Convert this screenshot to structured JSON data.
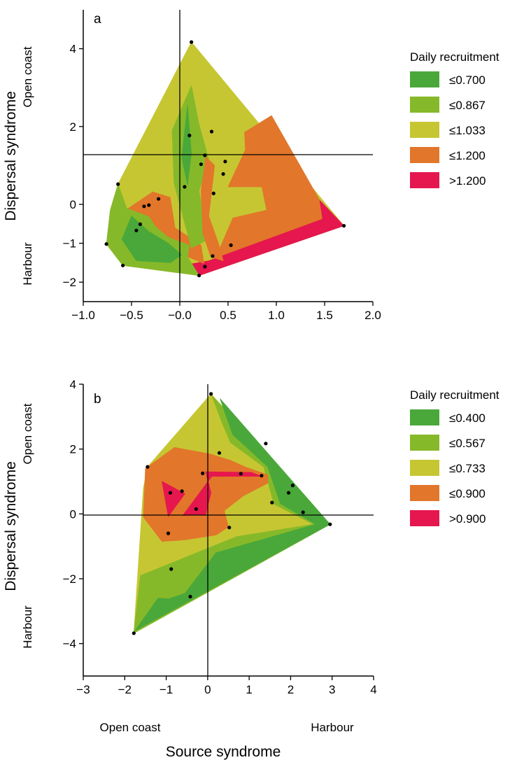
{
  "colors": {
    "class1": "#4aa83a",
    "class2": "#86b929",
    "class3": "#c6c633",
    "class4": "#e2762a",
    "class5": "#e5174e",
    "points": "#000000"
  },
  "shared": {
    "ylabel": "Dispersal syndrome",
    "xlabel": "Source syndrome",
    "y_top_label": "Open coast",
    "y_bottom_label": "Harbour",
    "x_left_label": "Open coast",
    "x_right_label": "Harbour",
    "legend_title": "Daily recruitment"
  },
  "chart_data": [
    {
      "type": "contour",
      "panel": "a",
      "xlim": [
        -1.0,
        2.0
      ],
      "ylim": [
        -2.5,
        5.0
      ],
      "xticks": [
        -1.0,
        -0.5,
        0.0,
        0.5,
        1.0,
        1.5,
        2.0
      ],
      "xtick_labels": [
        "-1.0",
        "-0.5",
        "-0.0",
        "0.5",
        "1.0",
        "1.5",
        "2.0"
      ],
      "yticks": [
        -2,
        -1,
        0,
        2,
        4
      ],
      "ytick_labels": [
        "-2",
        "-1",
        "0",
        "2",
        "4"
      ],
      "legend": [
        "≤0.700",
        "≤0.867",
        "≤1.033",
        "≤1.200",
        ">1.200"
      ],
      "points": [
        [
          0.12,
          4.17
        ],
        [
          -0.64,
          0.52
        ],
        [
          -0.22,
          0.14
        ],
        [
          -0.32,
          -0.02
        ],
        [
          -0.37,
          -0.05
        ],
        [
          -0.41,
          -0.51
        ],
        [
          -0.45,
          -0.67
        ],
        [
          -0.76,
          -1.02
        ],
        [
          -0.59,
          -1.57
        ],
        [
          0.05,
          0.45
        ],
        [
          0.1,
          1.77
        ],
        [
          0.33,
          1.87
        ],
        [
          0.26,
          1.26
        ],
        [
          0.22,
          1.03
        ],
        [
          0.47,
          1.1
        ],
        [
          0.45,
          0.78
        ],
        [
          0.35,
          0.28
        ],
        [
          0.34,
          -1.33
        ],
        [
          0.53,
          -1.05
        ],
        [
          0.26,
          -1.6
        ],
        [
          0.2,
          -1.83
        ],
        [
          1.7,
          -0.55
        ]
      ],
      "regions": [
        {
          "level": 3,
          "poly": [
            [
              0.12,
              4.17
            ],
            [
              1.7,
              -0.55
            ],
            [
              0.2,
              -1.83
            ],
            [
              -0.59,
              -1.57
            ],
            [
              -0.76,
              -1.02
            ],
            [
              -0.64,
              0.52
            ]
          ]
        },
        {
          "level": 4,
          "poly": [
            [
              0.67,
              1.85
            ],
            [
              0.95,
              2.28
            ],
            [
              1.45,
              0.1
            ],
            [
              1.7,
              -0.55
            ],
            [
              0.35,
              -1.5
            ],
            [
              0.55,
              -0.35
            ],
            [
              0.9,
              -0.15
            ],
            [
              0.85,
              0.45
            ],
            [
              0.5,
              0.45
            ],
            [
              0.68,
              1.4
            ]
          ]
        },
        {
          "level": 5,
          "poly": [
            [
              1.45,
              0.1
            ],
            [
              1.7,
              -0.55
            ],
            [
              0.2,
              -1.83
            ],
            [
              -0.26,
              -1.6
            ],
            [
              0.08,
              -1.55
            ],
            [
              0.3,
              -1.45
            ],
            [
              1.48,
              -0.38
            ]
          ]
        },
        {
          "level": 4,
          "poly": [
            [
              -0.28,
              0.32
            ],
            [
              -0.1,
              0.18
            ],
            [
              -0.05,
              -0.6
            ],
            [
              0.22,
              -1.05
            ],
            [
              0.25,
              -1.52
            ],
            [
              -0.08,
              -1.18
            ],
            [
              -0.48,
              -0.62
            ],
            [
              -0.56,
              -0.15
            ]
          ]
        },
        {
          "level": 2,
          "poly": [
            [
              -0.64,
              0.52
            ],
            [
              -0.72,
              -0.15
            ],
            [
              -0.76,
              -1.02
            ],
            [
              -0.59,
              -1.57
            ],
            [
              0.2,
              -1.83
            ],
            [
              0.08,
              -1.35
            ],
            [
              0.1,
              -1.05
            ],
            [
              -0.12,
              -0.85
            ],
            [
              -0.25,
              -0.58
            ],
            [
              -0.32,
              -0.32
            ],
            [
              -0.55,
              -0.1
            ]
          ]
        },
        {
          "level": 1,
          "poly": [
            [
              -0.5,
              -0.3
            ],
            [
              -0.6,
              -0.9
            ],
            [
              -0.45,
              -1.45
            ],
            [
              -0.1,
              -1.5
            ],
            [
              0.02,
              -1.3
            ],
            [
              -0.12,
              -1.0
            ],
            [
              -0.32,
              -0.7
            ]
          ]
        },
        {
          "level": 2,
          "poly": [
            [
              -0.08,
              1.9
            ],
            [
              0.12,
              3.05
            ],
            [
              0.2,
              2.05
            ],
            [
              0.3,
              1.15
            ],
            [
              0.2,
              0.35
            ],
            [
              0.28,
              -0.92
            ],
            [
              0.12,
              -1.12
            ],
            [
              0.02,
              -0.2
            ],
            [
              -0.06,
              0.55
            ]
          ]
        },
        {
          "level": 1,
          "poly": [
            [
              0.08,
              2.55
            ],
            [
              0.12,
              1.3
            ],
            [
              0.08,
              0.5
            ],
            [
              0.02,
              1.2
            ]
          ]
        },
        {
          "level": 4,
          "poly": [
            [
              0.27,
              1.22
            ],
            [
              0.36,
              1.0
            ],
            [
              0.3,
              -0.3
            ],
            [
              0.4,
              -1.0
            ],
            [
              0.45,
              -1.45
            ],
            [
              0.32,
              -1.35
            ],
            [
              0.24,
              -0.75
            ],
            [
              0.22,
              0.35
            ]
          ]
        }
      ]
    },
    {
      "type": "contour",
      "panel": "b",
      "xlim": [
        -3,
        4
      ],
      "ylim": [
        -5,
        4
      ],
      "xticks": [
        -3,
        -2,
        -1,
        0,
        1,
        2,
        3,
        4
      ],
      "xtick_labels": [
        "-3",
        "-2",
        "-1",
        "0",
        "1",
        "2",
        "3",
        "4"
      ],
      "yticks": [
        -4,
        -2,
        0,
        2,
        4
      ],
      "ytick_labels": [
        "-4",
        "-2",
        "0",
        "2",
        "4"
      ],
      "legend": [
        "≤0.400",
        "≤0.567",
        "≤0.733",
        "≤0.900",
        ">0.900"
      ],
      "points": [
        [
          0.08,
          3.7
        ],
        [
          1.4,
          2.17
        ],
        [
          0.28,
          1.88
        ],
        [
          -1.45,
          1.45
        ],
        [
          -0.12,
          1.25
        ],
        [
          0.8,
          1.24
        ],
        [
          1.3,
          1.18
        ],
        [
          2.05,
          0.88
        ],
        [
          1.95,
          0.65
        ],
        [
          1.55,
          0.35
        ],
        [
          2.3,
          0.05
        ],
        [
          -0.9,
          0.65
        ],
        [
          -0.62,
          0.7
        ],
        [
          -0.28,
          0.15
        ],
        [
          0.52,
          -0.42
        ],
        [
          -0.95,
          -0.6
        ],
        [
          -0.88,
          -1.7
        ],
        [
          -0.42,
          -2.55
        ],
        [
          -1.78,
          -3.68
        ],
        [
          2.95,
          -0.32
        ]
      ],
      "regions": [
        {
          "level": 3,
          "poly": [
            [
              0.08,
              3.7
            ],
            [
              2.95,
              -0.32
            ],
            [
              -1.78,
              -3.68
            ],
            [
              -1.55,
              0.8
            ],
            [
              -1.45,
              1.45
            ]
          ]
        },
        {
          "level": 2,
          "poly": [
            [
              0.1,
              3.65
            ],
            [
              2.95,
              -0.32
            ],
            [
              -1.78,
              -3.68
            ],
            [
              -1.62,
              -1.9
            ],
            [
              0.7,
              -0.7
            ],
            [
              2.55,
              -0.32
            ],
            [
              1.6,
              0.3
            ],
            [
              1.35,
              1.45
            ],
            [
              0.55,
              2.2
            ],
            [
              0.35,
              2.8
            ]
          ]
        },
        {
          "level": 1,
          "poly": [
            [
              0.3,
              3.55
            ],
            [
              2.95,
              -0.32
            ],
            [
              -1.75,
              -3.6
            ],
            [
              -1.2,
              -2.6
            ],
            [
              -0.95,
              -2.62
            ],
            [
              -0.55,
              -2.45
            ],
            [
              0.2,
              -1.2
            ],
            [
              2.6,
              -0.32
            ],
            [
              1.75,
              0.32
            ],
            [
              1.45,
              1.45
            ],
            [
              0.6,
              2.45
            ]
          ]
        },
        {
          "level": 4,
          "poly": [
            [
              -1.5,
              1.4
            ],
            [
              -0.8,
              2.05
            ],
            [
              0.05,
              1.85
            ],
            [
              0.55,
              1.65
            ],
            [
              0.9,
              1.45
            ],
            [
              1.45,
              1.2
            ],
            [
              1.45,
              0.95
            ],
            [
              0.85,
              0.55
            ],
            [
              0.4,
              0.1
            ],
            [
              0.5,
              -0.4
            ],
            [
              0.2,
              -0.65
            ],
            [
              -0.55,
              -0.8
            ],
            [
              -1.1,
              -0.85
            ],
            [
              -1.55,
              -0.1
            ]
          ]
        },
        {
          "level": 5,
          "poly": [
            [
              -1.1,
              1.0
            ],
            [
              -0.55,
              0.62
            ],
            [
              -0.95,
              -0.08
            ]
          ]
        },
        {
          "level": 5,
          "poly": [
            [
              -0.05,
              1.3
            ],
            [
              1.05,
              1.28
            ],
            [
              1.3,
              1.16
            ],
            [
              0.1,
              1.16
            ],
            [
              -0.6,
              -0.05
            ],
            [
              -0.05,
              -0.02
            ],
            [
              0.08,
              0.65
            ]
          ]
        }
      ]
    }
  ]
}
